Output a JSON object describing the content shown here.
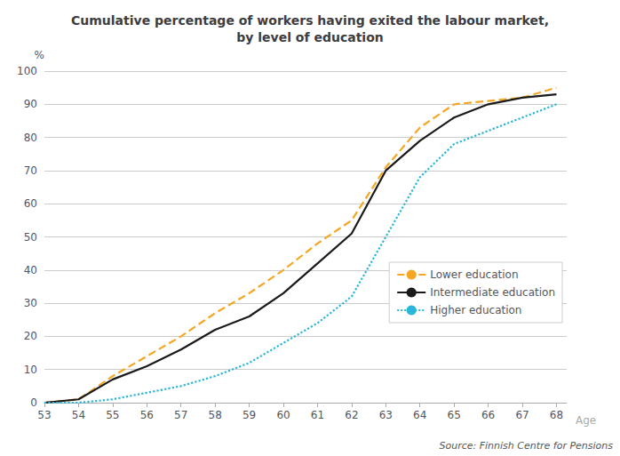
{
  "chart_data": {
    "type": "line",
    "title": "Cumulative percentage of workers having exited the labour market,\nby level of education",
    "xlabel": "Age",
    "ylabel": "%",
    "annotations": [
      "Source: Finnish Centre for Pensions"
    ],
    "x": [
      53,
      54,
      55,
      56,
      57,
      58,
      59,
      60,
      61,
      62,
      63,
      64,
      65,
      66,
      67,
      68
    ],
    "series": [
      {
        "name": "Lower education",
        "color": "#f5a623",
        "line_style": "dashed",
        "values": [
          0,
          1,
          8,
          14,
          20,
          27,
          33,
          40,
          48,
          55,
          71,
          83,
          90,
          91,
          92,
          95
        ]
      },
      {
        "name": "Intermediate education",
        "color": "#1a1a1a",
        "line_style": "solid",
        "values": [
          0,
          1,
          7,
          11,
          16,
          22,
          26,
          33,
          42,
          51,
          70,
          79,
          86,
          90,
          92,
          93
        ]
      },
      {
        "name": "Higher education",
        "color": "#29b6d8",
        "line_style": "dotted",
        "values": [
          0,
          0,
          1,
          3,
          5,
          8,
          12,
          18,
          24,
          32,
          50,
          68,
          78,
          82,
          86,
          90
        ]
      }
    ],
    "xlim": [
      53,
      68.3
    ],
    "xticks": [
      53,
      54,
      55,
      56,
      57,
      58,
      59,
      60,
      61,
      62,
      63,
      64,
      65,
      66,
      67,
      68
    ],
    "ylim": [
      0,
      100
    ],
    "yticks": [
      0,
      10,
      20,
      30,
      40,
      50,
      60,
      70,
      80,
      90,
      100
    ],
    "grid": true,
    "legend": "lower right"
  }
}
